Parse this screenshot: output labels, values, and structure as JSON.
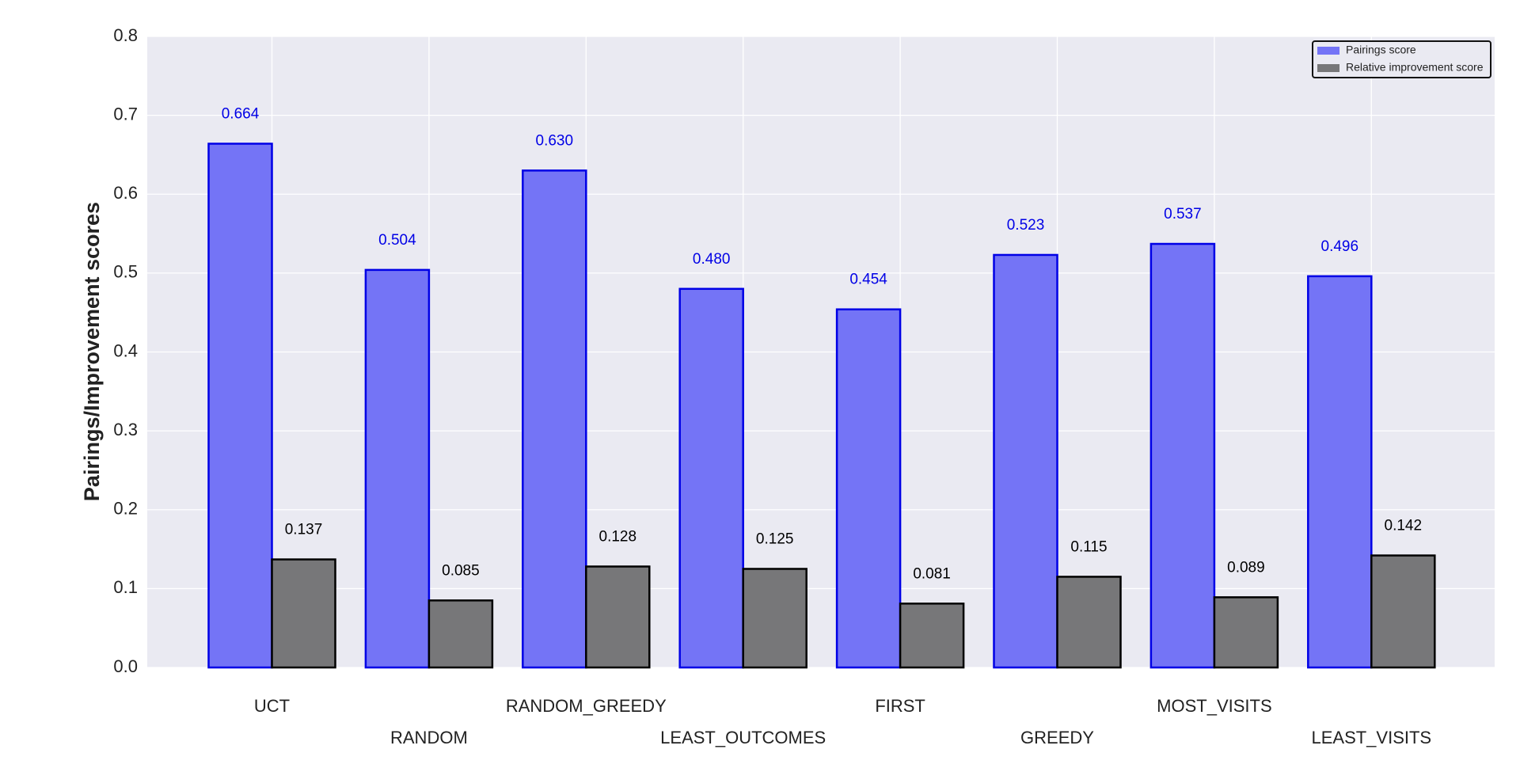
{
  "chart_data": {
    "type": "bar",
    "ylabel": "Pairings/Improvement scores",
    "categories": [
      "UCT",
      "RANDOM",
      "RANDOM_GREEDY",
      "LEAST_OUTCOMES",
      "FIRST",
      "GREEDY",
      "MOST_VISITS",
      "LEAST_VISITS"
    ],
    "series": [
      {
        "name": "Pairings score",
        "color": "#7474f6",
        "edgecolor": "#0000e6",
        "values": [
          0.664,
          0.504,
          0.63,
          0.48,
          0.454,
          0.523,
          0.537,
          0.496
        ],
        "value_labels": [
          "0.664",
          "0.504",
          "0.630",
          "0.480",
          "0.454",
          "0.523",
          "0.537",
          "0.496"
        ]
      },
      {
        "name": "Relative improvement score",
        "color": "#777779",
        "edgecolor": "#000000",
        "values": [
          0.137,
          0.085,
          0.128,
          0.125,
          0.081,
          0.115,
          0.089,
          0.142
        ],
        "value_labels": [
          "0.137",
          "0.085",
          "0.128",
          "0.125",
          "0.081",
          "0.115",
          "0.089",
          "0.142"
        ]
      }
    ],
    "ylim": [
      0,
      0.8
    ],
    "yticks": [
      {
        "value": 0,
        "label": "0.0"
      },
      0.1,
      0.2,
      0.3,
      0.4,
      0.5,
      0.6,
      0.7,
      0.8
    ],
    "grid": true,
    "legend": "upper right"
  }
}
